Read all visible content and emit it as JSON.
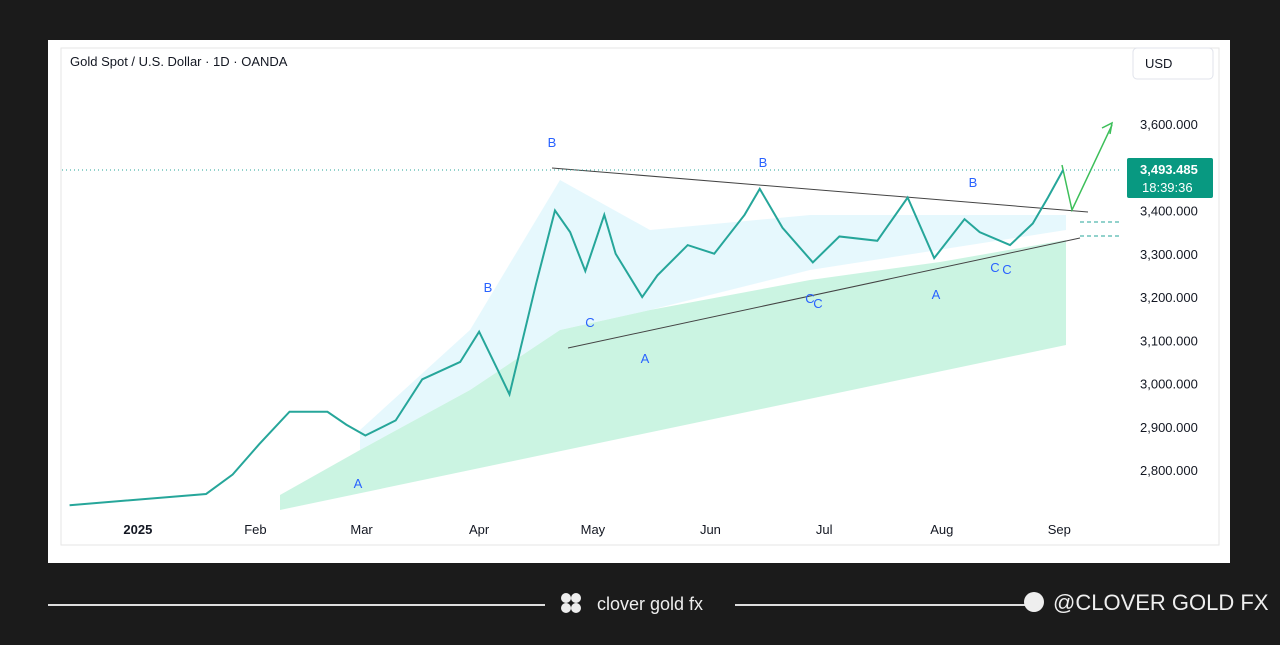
{
  "chart_data": {
    "type": "line",
    "title": "Gold Spot / U.S. Dollar · 1D · OANDA",
    "currency": "USD",
    "x": [
      -18,
      18,
      25,
      32,
      40,
      50,
      55,
      60,
      68,
      75,
      85,
      90,
      95,
      98,
      105,
      110,
      114,
      118,
      123,
      126,
      133,
      137,
      145,
      152,
      160,
      164,
      170,
      178,
      185,
      195,
      203,
      210,
      218,
      222,
      230,
      236,
      240,
      244
    ],
    "series": [
      {
        "color": "#26a69a",
        "values": [
          2719,
          2745,
          2790,
          2860,
          2935,
          2935,
          2905,
          2880,
          2915,
          3010,
          3050,
          3120,
          3030,
          2975,
          3230,
          3400,
          3350,
          3260,
          3390,
          3300,
          3200,
          3250,
          3320,
          3300,
          3390,
          3450,
          3360,
          3280,
          3340,
          3330,
          3430,
          3290,
          3380,
          3350,
          3320,
          3370,
          3430,
          3493.485
        ]
      }
    ],
    "xlim": [
      -20,
      259
    ],
    "xticks": [
      {
        "value": 0,
        "label": "2025"
      },
      {
        "value": 31,
        "label": "Feb"
      },
      {
        "value": 59,
        "label": "Mar"
      },
      {
        "value": 90,
        "label": "Apr"
      },
      {
        "value": 120,
        "label": "May"
      },
      {
        "value": 151,
        "label": "Jun"
      },
      {
        "value": 181,
        "label": "Jul"
      },
      {
        "value": 212,
        "label": "Aug"
      },
      {
        "value": 243,
        "label": "Sep"
      }
    ],
    "ylim": [
      2708,
      3713
    ],
    "yticks": [
      {
        "value": 2800,
        "label": "2,800.000"
      },
      {
        "value": 2900,
        "label": "2,900.000"
      },
      {
        "value": 3000,
        "label": "3,000.000"
      },
      {
        "value": 3100,
        "label": "3,100.000"
      },
      {
        "value": 3200,
        "label": "3,200.000"
      },
      {
        "value": 3300,
        "label": "3,300.000"
      },
      {
        "value": 3400,
        "label": "3,400.000"
      },
      {
        "value": 3600,
        "label": "3,600.000"
      }
    ],
    "grid": false,
    "price_marker": {
      "value": 3493.485,
      "label": "3,493.485",
      "countdown": "18:39:36"
    },
    "annotations": [
      "B",
      "B",
      "B",
      "B",
      "C",
      "A",
      "A",
      "C",
      "C",
      "A",
      "C",
      "C"
    ]
  },
  "footer": {
    "brand": "clover gold fx",
    "handle": "@CLOVER GOLD FX"
  }
}
